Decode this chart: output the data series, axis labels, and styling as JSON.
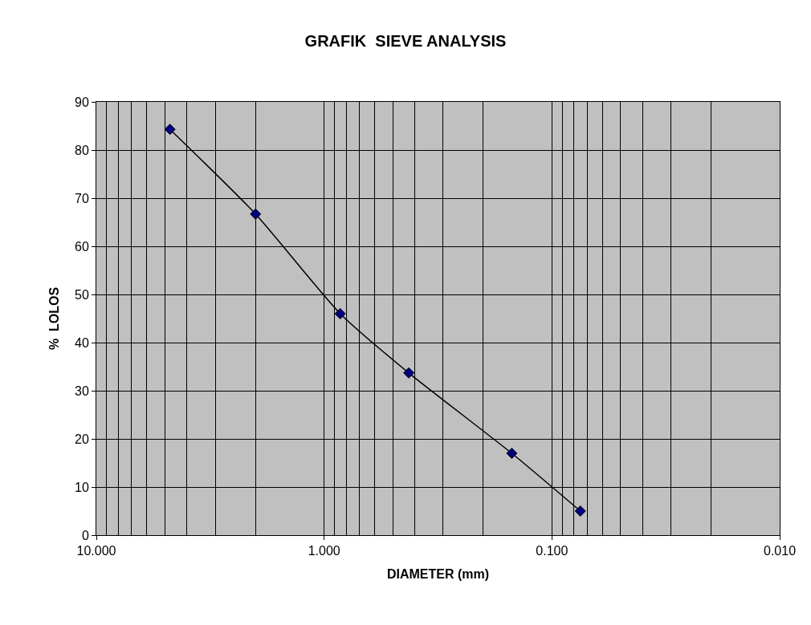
{
  "chart_data": {
    "type": "line",
    "title": "GRAFIK  SIEVE ANALYSIS",
    "xlabel": "DIAMETER (mm)",
    "ylabel": "%  LOLOS",
    "x": [
      4.75,
      2.0,
      0.85,
      0.425,
      0.15,
      0.075
    ],
    "series": [
      {
        "color": "#000000",
        "values": [
          84.3,
          66.7,
          46.0,
          33.7,
          17.0,
          5.0
        ]
      }
    ],
    "log": "x",
    "xlim": [
      10,
      0.01
    ],
    "xticks": [
      {
        "value": 10,
        "label": "10.000"
      },
      {
        "value": 1,
        "label": "1.000"
      },
      {
        "value": 0.1,
        "label": "0.100"
      },
      {
        "value": 0.01,
        "label": "0.010"
      }
    ],
    "ylim": [
      0,
      90
    ],
    "yticks": [
      0,
      10,
      20,
      30,
      40,
      50,
      60,
      70,
      80,
      90
    ],
    "grid": true,
    "marker": "diamond",
    "line_style": "solid"
  }
}
